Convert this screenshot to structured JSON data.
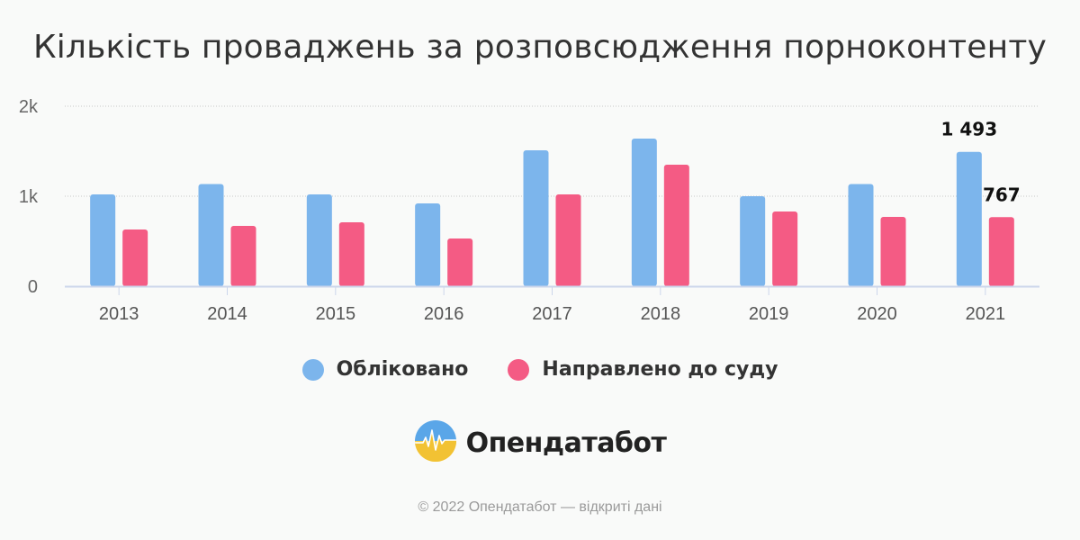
{
  "header": {
    "title": "Кількість проваджень за розповсюдження порноконтенту"
  },
  "chart_data": {
    "type": "bar",
    "categories": [
      "2013",
      "2014",
      "2015",
      "2016",
      "2017",
      "2018",
      "2019",
      "2020",
      "2021"
    ],
    "series": [
      {
        "name": "Обліковано",
        "color": "#7cb5ec",
        "values": [
          1020,
          1135,
          1020,
          920,
          1510,
          1640,
          1000,
          1135,
          1493
        ]
      },
      {
        "name": "Направлено до суду",
        "color": "#f45b84",
        "values": [
          630,
          670,
          710,
          530,
          1020,
          1350,
          830,
          770,
          767
        ]
      }
    ],
    "y_ticks": [
      {
        "value": 0,
        "label": "0"
      },
      {
        "value": 1000,
        "label": "1k"
      },
      {
        "value": 2000,
        "label": "2k"
      }
    ],
    "ylim": [
      0,
      2000
    ],
    "data_labels": [
      {
        "series": 0,
        "category": "2021",
        "text": "1 493"
      },
      {
        "series": 1,
        "category": "2021",
        "text": "767"
      }
    ],
    "grid": true,
    "legend_position": "bottom"
  },
  "brand": {
    "name": "Опендатабот",
    "logo_icon": "opendatabot-logo-icon"
  },
  "footer": {
    "text": "© 2022 Опендатабот — відкриті дані"
  }
}
